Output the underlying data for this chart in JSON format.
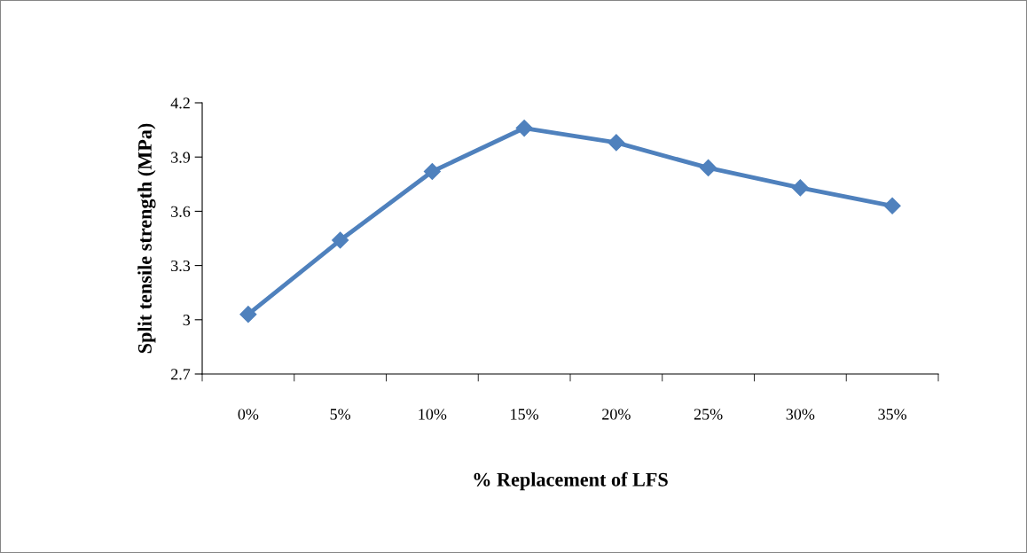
{
  "chart_data": {
    "type": "line",
    "xlabel": "% Replacement of LFS",
    "ylabel": "Split tensile strength (MPa)",
    "categories": [
      "0%",
      "5%",
      "10%",
      "15%",
      "20%",
      "25%",
      "30%",
      "35%"
    ],
    "series": [
      {
        "color": "#4f81bd",
        "values": [
          3.03,
          3.44,
          3.82,
          4.06,
          3.98,
          3.84,
          3.73,
          3.63
        ]
      }
    ],
    "ylim": [
      2.7,
      4.2
    ],
    "yticks": [
      2.7,
      3,
      3.3,
      3.6,
      3.9,
      4.2
    ],
    "marker": "diamond",
    "line_style": "solid",
    "grid": false,
    "legend": false
  }
}
